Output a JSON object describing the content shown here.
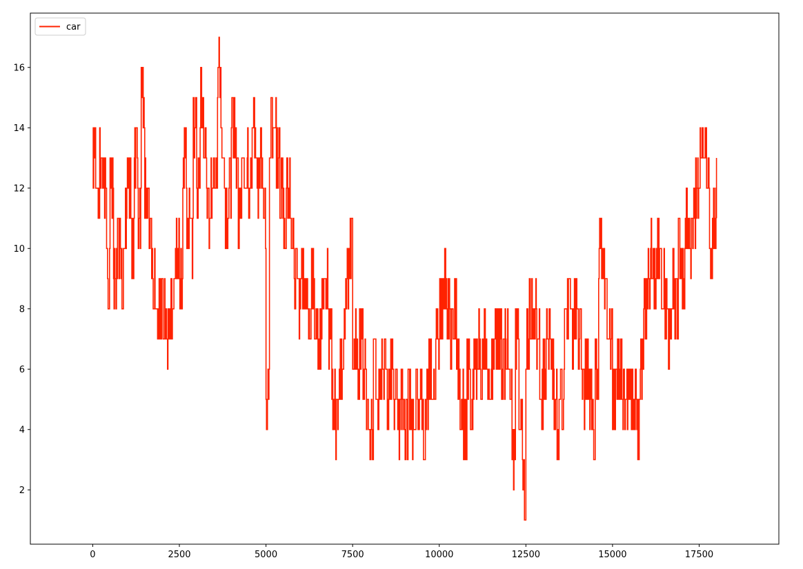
{
  "chart_data": {
    "type": "line",
    "step": true,
    "x_range": [
      0,
      18000
    ],
    "xlim": [
      -1800,
      19800
    ],
    "ylim": [
      0.2,
      17.8
    ],
    "x_ticks": [
      0,
      2500,
      5000,
      7500,
      10000,
      12500,
      15000,
      17500
    ],
    "y_ticks": [
      2,
      4,
      6,
      8,
      10,
      12,
      14,
      16
    ],
    "grid": false,
    "legend": {
      "placement": "top-left",
      "entries": [
        "car"
      ]
    },
    "title": "",
    "xlabel": "",
    "ylabel": "",
    "series": [
      {
        "name": "car",
        "color": "#ff2200",
        "x": [
          0,
          100,
          200,
          300,
          400,
          500,
          600,
          700,
          800,
          900,
          1000,
          1100,
          1200,
          1300,
          1400,
          1500,
          1600,
          1700,
          1800,
          1900,
          2000,
          2100,
          2200,
          2300,
          2400,
          2500,
          2600,
          2700,
          2800,
          2900,
          3000,
          3100,
          3200,
          3300,
          3400,
          3500,
          3600,
          3700,
          3800,
          3900,
          4000,
          4100,
          4200,
          4300,
          4400,
          4500,
          4600,
          4700,
          4800,
          4900,
          5000,
          5100,
          5200,
          5300,
          5400,
          5500,
          5600,
          5700,
          5800,
          5900,
          6000,
          6100,
          6200,
          6300,
          6400,
          6500,
          6600,
          6700,
          6800,
          6900,
          7000,
          7100,
          7200,
          7300,
          7400,
          7500,
          7600,
          7700,
          7800,
          7900,
          8000,
          8100,
          8200,
          8300,
          8400,
          8500,
          8600,
          8700,
          8800,
          8900,
          9000,
          9100,
          9200,
          9300,
          9400,
          9500,
          9600,
          9700,
          9800,
          9900,
          10000,
          10100,
          10200,
          10300,
          10400,
          10500,
          10600,
          10700,
          10800,
          10900,
          11000,
          11100,
          11200,
          11300,
          11400,
          11500,
          11600,
          11700,
          11800,
          11900,
          12000,
          12100,
          12200,
          12300,
          12400,
          12500,
          12600,
          12700,
          12800,
          12900,
          13000,
          13100,
          13200,
          13300,
          13400,
          13500,
          13600,
          13700,
          13800,
          13900,
          14000,
          14100,
          14200,
          14300,
          14400,
          14500,
          14600,
          14700,
          14800,
          14900,
          15000,
          15100,
          15200,
          15300,
          15400,
          15500,
          15600,
          15700,
          15800,
          15900,
          16000,
          16100,
          16200,
          16300,
          16400,
          16500,
          16600,
          16700,
          16800,
          16900,
          17000,
          17100,
          17200,
          17300,
          17400,
          17500,
          17600,
          17700,
          17800,
          17900,
          18000
        ],
        "values": [
          13,
          12,
          13,
          12,
          9,
          12,
          9,
          10,
          9,
          11,
          12,
          10,
          13,
          11,
          15,
          12,
          11,
          9,
          7,
          8,
          8,
          7,
          8,
          9,
          10,
          9,
          13,
          11,
          10,
          14,
          12,
          15,
          13,
          11,
          12,
          13,
          16,
          14,
          11,
          12,
          14,
          13,
          11,
          12,
          13,
          12,
          14,
          12,
          13,
          11,
          5,
          14,
          15,
          13,
          12,
          11,
          12,
          11,
          9,
          8,
          9,
          8,
          7,
          9,
          8,
          7,
          8,
          9,
          7,
          5,
          4,
          6,
          7,
          9,
          10,
          7,
          6,
          7,
          6,
          5,
          4,
          6,
          5,
          6,
          6,
          5,
          6,
          5,
          4,
          5,
          4,
          5,
          4,
          5,
          5,
          4,
          5,
          6,
          5,
          7,
          8,
          9,
          8,
          7,
          8,
          6,
          5,
          4,
          6,
          5,
          6,
          7,
          6,
          7,
          6,
          6,
          7,
          7,
          6,
          7,
          6,
          3,
          7,
          5,
          2,
          7,
          8,
          8,
          7,
          5,
          6,
          7,
          6,
          5,
          4,
          5,
          7,
          8,
          7,
          8,
          7,
          5,
          6,
          5,
          4,
          6,
          10,
          9,
          8,
          7,
          5,
          6,
          6,
          5,
          5,
          5,
          5,
          4,
          6,
          8,
          9,
          10,
          9,
          10,
          9,
          8,
          7,
          9,
          8,
          10,
          9,
          11,
          10,
          11,
          12,
          13,
          14,
          13,
          10,
          11,
          12
        ]
      }
    ]
  }
}
